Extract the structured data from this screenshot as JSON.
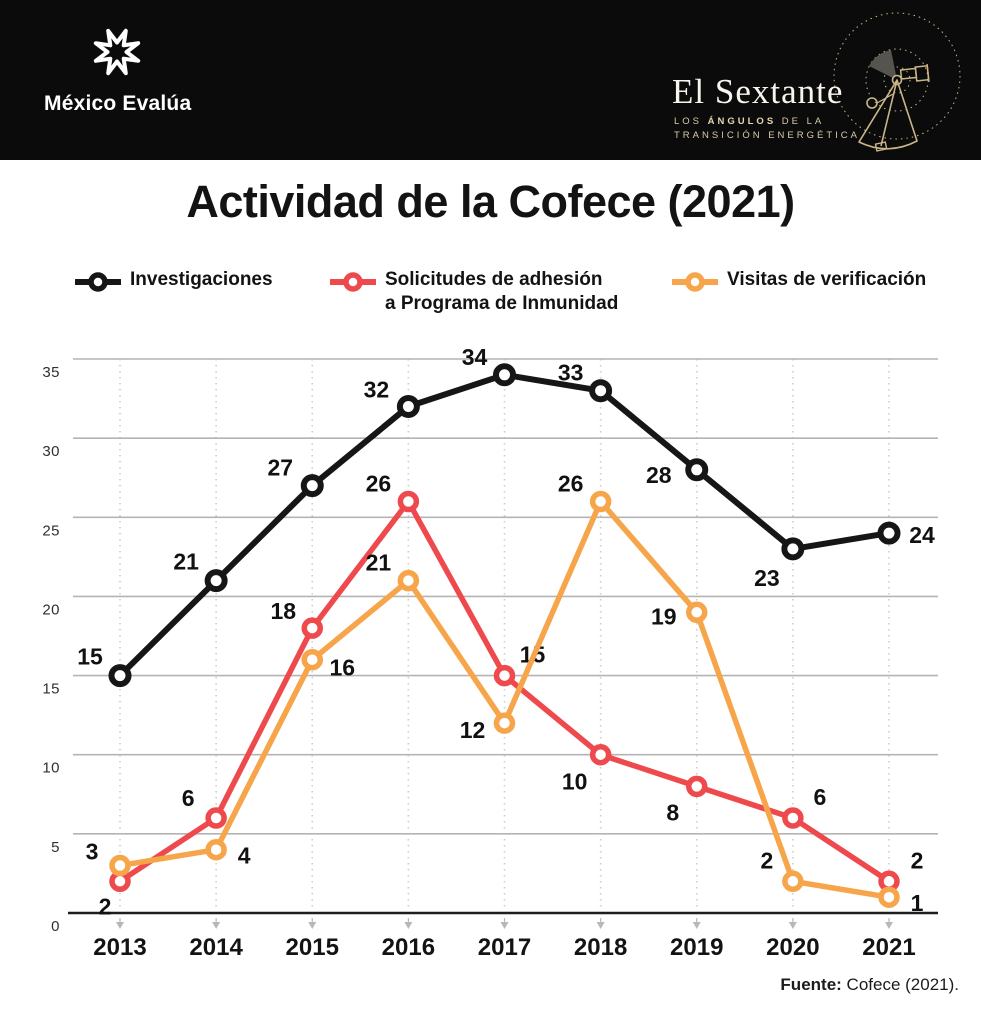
{
  "header": {
    "brand_left": {
      "name": "México Evalúa"
    },
    "brand_right": {
      "title": "El Sextante",
      "subtitle_1a": "LOS ",
      "subtitle_1b": "ÁNGULOS",
      "subtitle_1c": " DE LA",
      "subtitle_2": "TRANSICIÓN ENERGÉTICA",
      "gold_color": "#c9b687"
    }
  },
  "title": "Actividad de la Cofece (2021)",
  "legend": {
    "items": [
      {
        "color": "#161616",
        "lines": [
          "Investigaciones",
          ""
        ]
      },
      {
        "color": "#ee4a4e",
        "lines": [
          "Solicitudes de adhesión",
          "a Programa de Inmunidad"
        ]
      },
      {
        "color": "#f7a54a",
        "lines": [
          "Visitas de verificación",
          ""
        ]
      }
    ]
  },
  "chart_data": {
    "type": "line",
    "title": "Actividad de la Cofece (2021)",
    "x": [
      "2013",
      "2014",
      "2015",
      "2016",
      "2017",
      "2018",
      "2019",
      "2020",
      "2021"
    ],
    "ylim": [
      0,
      35
    ],
    "ytick_step": 5,
    "grid": {
      "horizontal": true,
      "vertical_dotted": true
    },
    "legend_position": "top",
    "series": [
      {
        "name": "Investigaciones",
        "color": "#161616",
        "values": [
          15,
          21,
          27,
          32,
          34,
          33,
          28,
          23,
          24
        ],
        "label_dx": [
          -30,
          -30,
          -32,
          -32,
          -30,
          -30,
          -38,
          -26,
          33
        ],
        "label_dy": [
          -19,
          -19,
          -18,
          -17,
          -18,
          -18,
          5,
          29,
          2
        ]
      },
      {
        "name": "Solicitudes de adhesión a Programa de Inmunidad",
        "color": "#ee4a4e",
        "values": [
          2,
          6,
          18,
          26,
          15,
          10,
          8,
          6,
          2
        ],
        "label_dx": [
          -15,
          -28,
          -29,
          -30,
          28,
          -26,
          -24,
          27,
          28
        ],
        "label_dy": [
          25,
          -20,
          -17,
          -18,
          -21,
          27,
          26,
          -21,
          -21
        ]
      },
      {
        "name": "Visitas de verificación",
        "color": "#f7a54a",
        "values": [
          3,
          4,
          16,
          21,
          12,
          26,
          19,
          2,
          1
        ],
        "label_dx": [
          -28,
          28,
          30,
          -30,
          -32,
          -30,
          -33,
          -26,
          28
        ],
        "label_dy": [
          -14,
          6,
          8,
          -18,
          7,
          -18,
          4,
          -21,
          6
        ]
      }
    ],
    "colors": {
      "gridline": "#b4b4b4",
      "dotted_line": "#cdcdcd",
      "axis": "#1e1e1e",
      "tick_arrow": "#b8b8b8",
      "tick_label": "#2f2f2f",
      "data_label": "#111111"
    }
  },
  "footer": {
    "source_label": "Fuente:",
    "source_text": " Cofece (2021)."
  }
}
